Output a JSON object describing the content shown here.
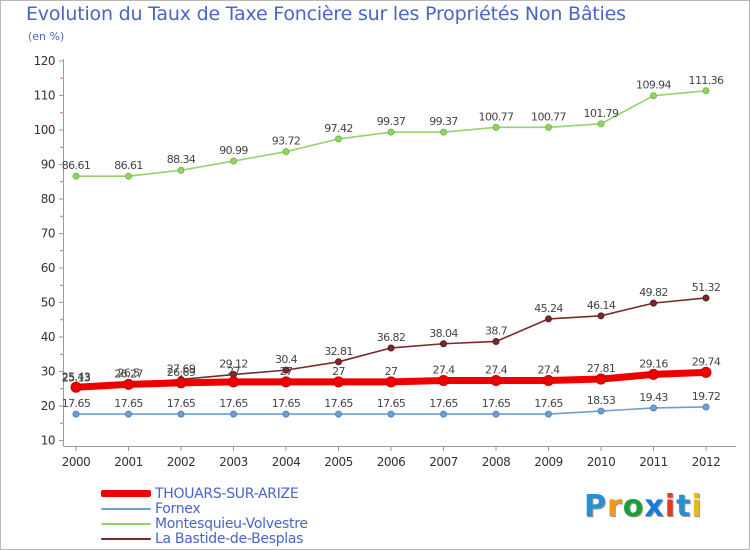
{
  "title": "Evolution du Taux de Taxe Foncière sur les Propriétés Non Bâties",
  "subtitle": "(en %)",
  "logo": {
    "letters": [
      "P",
      "r",
      "o",
      "x",
      "i",
      "t",
      "i"
    ],
    "colors": [
      "#2a8fd0",
      "#f39a1c",
      "#1e9c3a",
      "#1b7ad8",
      "#e63a1f",
      "#2a8fd0",
      "#e8b91d"
    ]
  },
  "chart_data": {
    "type": "line",
    "title": "Evolution du Taux de Taxe Foncière sur les Propriétés Non Bâties",
    "ylabel": "(en %)",
    "xlabel": "",
    "ylim": [
      10,
      120
    ],
    "yticks": [
      10,
      20,
      30,
      40,
      50,
      60,
      70,
      80,
      90,
      100,
      110,
      120
    ],
    "x": [
      "2000",
      "2001",
      "2002",
      "2003",
      "2004",
      "2005",
      "2006",
      "2007",
      "2008",
      "2009",
      "2010",
      "2011",
      "2012"
    ],
    "grid": false,
    "legend_position": "bottom-left",
    "series": [
      {
        "name": "Montesquieu-Volvestre",
        "color": "#95d26b",
        "marker": "#6fbf3a",
        "values": [
          86.61,
          86.61,
          88.34,
          90.99,
          93.72,
          97.42,
          99.37,
          99.37,
          100.77,
          100.77,
          101.79,
          109.94,
          111.36
        ],
        "labels": [
          "86.61",
          "86.61",
          "88.34",
          "90.99",
          "93.72",
          "97.42",
          "99.37",
          "99.37",
          "100.77",
          "100.77",
          "101.79",
          "109.94",
          "111.36"
        ]
      },
      {
        "name": "La Bastide-de-Besplas",
        "color": "#7a2a2a",
        "marker": "#5e1b1b",
        "values": [
          25.13,
          26.5,
          27.69,
          29.12,
          30.4,
          32.81,
          36.82,
          38.04,
          38.7,
          45.24,
          46.14,
          49.82,
          51.32
        ],
        "labels": [
          "25.13",
          "26.5",
          "27.69",
          "29.12",
          "30.4",
          "32.81",
          "36.82",
          "38.04",
          "38.7",
          "45.24",
          "46.14",
          "49.82",
          "51.32"
        ]
      },
      {
        "name": "Fornex",
        "color": "#6e9fcf",
        "marker": "#4f87c2",
        "values": [
          17.65,
          17.65,
          17.65,
          17.65,
          17.65,
          17.65,
          17.65,
          17.65,
          17.65,
          17.65,
          18.53,
          19.43,
          19.72
        ],
        "labels": [
          "17.65",
          "17.65",
          "17.65",
          "17.65",
          "17.65",
          "17.65",
          "17.65",
          "17.65",
          "17.65",
          "17.65",
          "18.53",
          "19.43",
          "19.72"
        ]
      },
      {
        "name": "THOUARS-SUR-ARIZE",
        "color": "#ee0000",
        "marker": "#cc0000",
        "values": [
          25.43,
          26.27,
          26.69,
          27,
          27,
          27,
          27,
          27.4,
          27.4,
          27.4,
          27.81,
          29.16,
          29.74
        ],
        "labels": [
          "25.43",
          "26.27",
          "26.69",
          "27",
          "27",
          "27",
          "27",
          "27.4",
          "27.4",
          "27.4",
          "27.81",
          "29.16",
          "29.74"
        ]
      }
    ],
    "legend": [
      {
        "name": "THOUARS-SUR-ARIZE",
        "color": "#ee0000"
      },
      {
        "name": "Fornex",
        "color": "#6e9fcf"
      },
      {
        "name": "Montesquieu-Volvestre",
        "color": "#95d26b"
      },
      {
        "name": "La Bastide-de-Besplas",
        "color": "#7a2a2a"
      }
    ]
  }
}
